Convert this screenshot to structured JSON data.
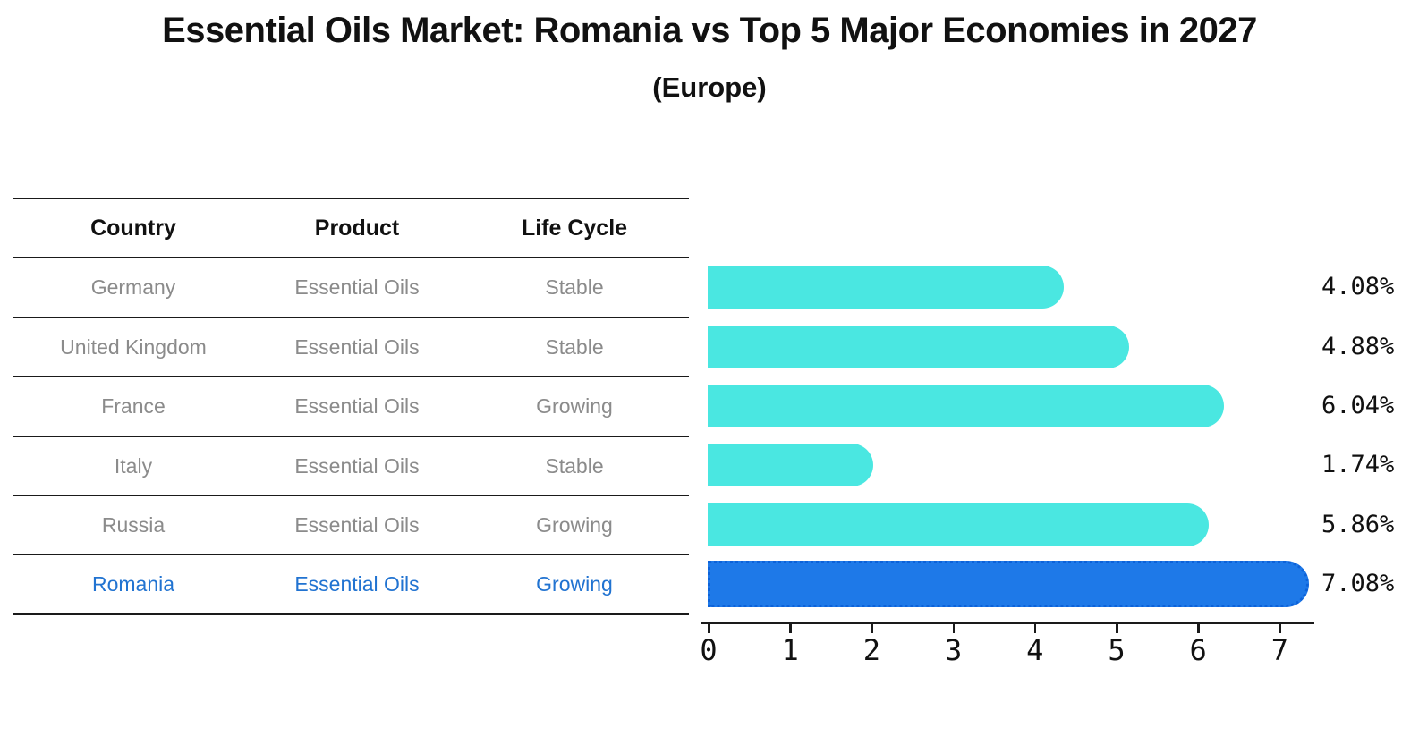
{
  "title": "Essential Oils Market: Romania vs Top 5 Major Economies in 2027",
  "subtitle": "(Europe)",
  "table": {
    "headers": [
      "Country",
      "Product",
      "Life Cycle"
    ],
    "rows": [
      {
        "country": "Germany",
        "product": "Essential Oils",
        "life_cycle": "Stable",
        "highlighted": false
      },
      {
        "country": "United Kingdom",
        "product": "Essential Oils",
        "life_cycle": "Stable",
        "highlighted": false
      },
      {
        "country": "France",
        "product": "Essential Oils",
        "life_cycle": "Growing",
        "highlighted": false
      },
      {
        "country": "Italy",
        "product": "Essential Oils",
        "life_cycle": "Stable",
        "highlighted": false
      },
      {
        "country": "Russia",
        "product": "Essential Oils",
        "life_cycle": "Growing",
        "highlighted": false
      },
      {
        "country": "Romania",
        "product": "Essential Oils",
        "life_cycle": "Growing",
        "highlighted": true
      }
    ]
  },
  "chart_data": {
    "type": "bar",
    "orientation": "horizontal",
    "title": "Essential Oils Market: Romania vs Top 5 Major Economies in 2027 (Europe)",
    "categories": [
      "Germany",
      "United Kingdom",
      "France",
      "Italy",
      "Russia",
      "Romania"
    ],
    "values": [
      4.08,
      4.88,
      6.04,
      1.74,
      5.86,
      7.08
    ],
    "value_labels": [
      "4.08%",
      "4.88%",
      "6.04%",
      "1.74%",
      "5.86%",
      "7.08%"
    ],
    "xlabel": "",
    "ylabel": "",
    "xlim": [
      0,
      7.5
    ],
    "xticks": [
      0,
      1,
      2,
      3,
      4,
      5,
      6,
      7
    ],
    "grid": false,
    "legend": false,
    "bar_color": "#4AE7E1",
    "highlight_index": 5,
    "highlight_color": "#1E79E8",
    "highlight_border_color": "#0D62D9"
  },
  "colors": {
    "highlight_text": "#2173D1",
    "row_text": "#8b8b8b",
    "header_text": "#111111",
    "line": "#1a1a1a"
  }
}
